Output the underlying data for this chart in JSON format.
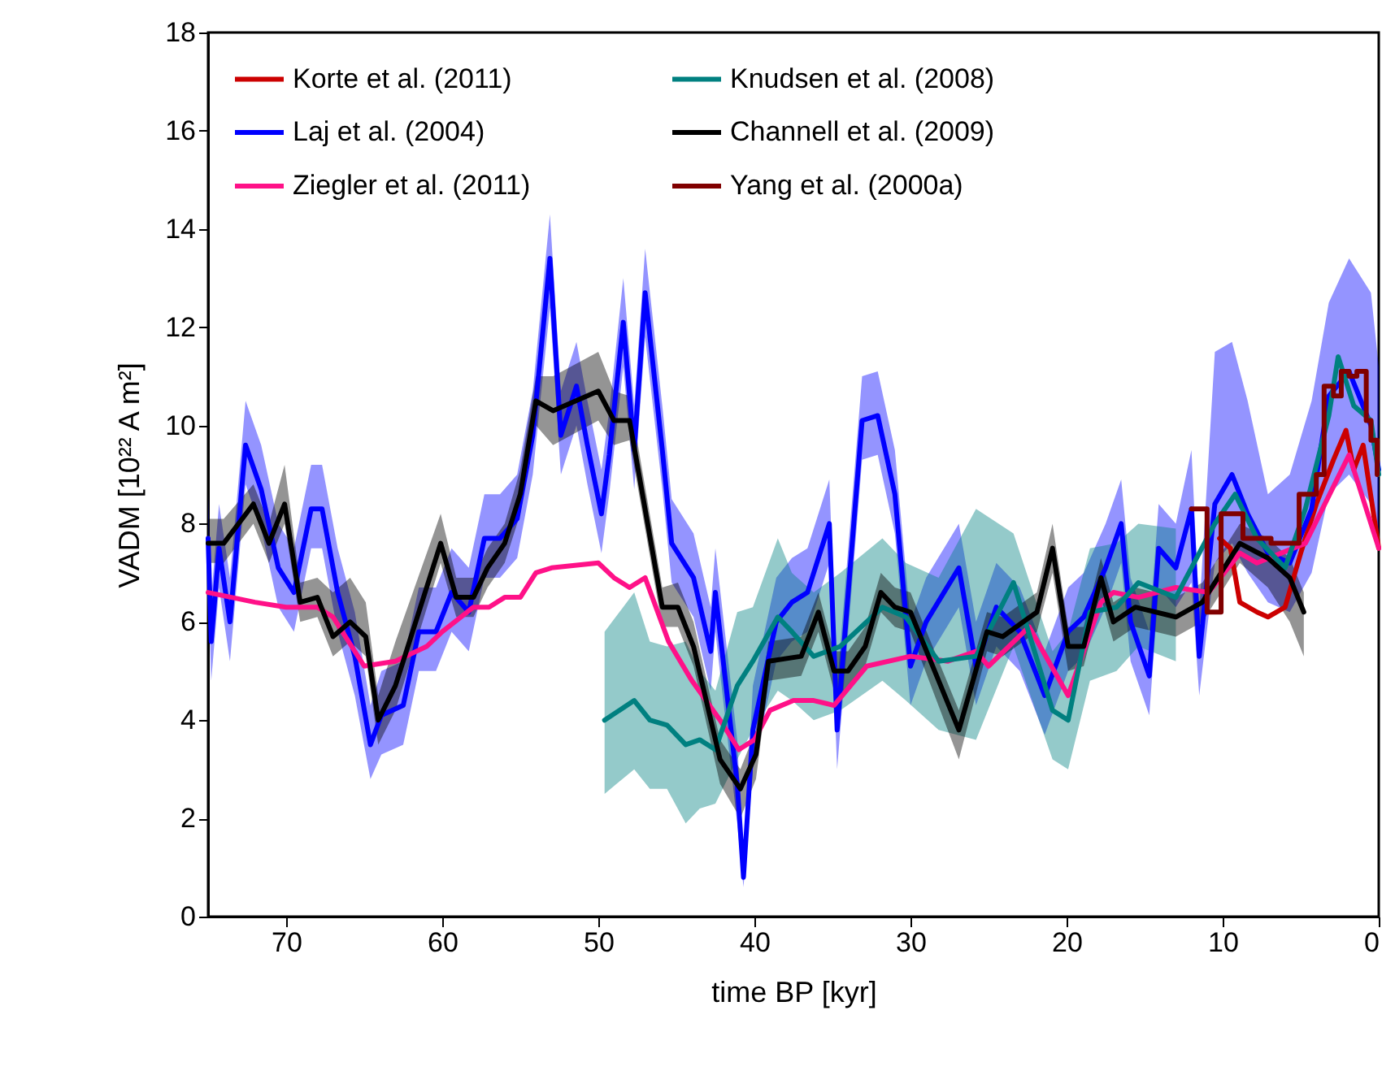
{
  "chart_data": {
    "type": "line",
    "xlabel": "time BP [kyr]",
    "ylabel": "VADM [10²² A m²]",
    "xlim": [
      75,
      0
    ],
    "xticks": [
      70,
      60,
      50,
      40,
      30,
      20,
      10,
      0
    ],
    "ylim": [
      0,
      18
    ],
    "yticks": [
      0,
      2,
      4,
      6,
      8,
      10,
      12,
      14,
      16,
      18
    ],
    "grid": false,
    "legend": "top",
    "line_style": "solid",
    "marker": "none",
    "series": [
      {
        "name": "Korte et al. (2011)",
        "color": "#cc0000",
        "x": [
          10.2,
          9.5,
          8.9,
          7.8,
          7.1,
          6,
          5,
          4,
          2.9,
          2.1,
          1.6,
          1,
          0
        ],
        "values": [
          7.7,
          7.5,
          6.4,
          6.2,
          6.1,
          6.3,
          7.4,
          8.4,
          9.3,
          9.9,
          9.1,
          9.6,
          7.5
        ]
      },
      {
        "name": "Laj et al. (2004)",
        "color": "#0000ff",
        "x": [
          75,
          74.8,
          74.3,
          73.6,
          72.6,
          71.6,
          70.5,
          69.5,
          68.4,
          67.7,
          66.7,
          65.6,
          64.6,
          63.9,
          62.5,
          61.5,
          60.4,
          59.4,
          58.3,
          57.3,
          56.3,
          55.2,
          54.2,
          53.1,
          52.4,
          51.4,
          50.7,
          49.8,
          49.3,
          48.4,
          47.7,
          47,
          45.9,
          45.3,
          43.9,
          42.8,
          42.5,
          41.1,
          40.7,
          40.1,
          38.6,
          37.6,
          36.6,
          35.2,
          34.7,
          33.1,
          32.1,
          31,
          30,
          29,
          26.9,
          25.8,
          24.5,
          23,
          21.4,
          19.9,
          18.9,
          17.5,
          16.5,
          15.9,
          14.7,
          14.1,
          13,
          12,
          11.5,
          10.5,
          9.4,
          8.4,
          7.1,
          5.7,
          4.3,
          3.2,
          1.9,
          0.5,
          0
        ],
        "values": [
          7.7,
          5.6,
          7.5,
          6.0,
          9.6,
          8.7,
          7.1,
          6.6,
          8.3,
          8.3,
          6.6,
          5.3,
          3.5,
          4.1,
          4.3,
          5.8,
          5.8,
          6.6,
          6.2,
          7.7,
          7.7,
          8.1,
          9.8,
          13.4,
          9.8,
          10.8,
          9.6,
          8.2,
          9.4,
          12.1,
          9.5,
          12.7,
          9.5,
          7.6,
          6.9,
          5.4,
          6.6,
          2.7,
          0.8,
          3.8,
          6.0,
          6.4,
          6.6,
          8.0,
          3.8,
          10.1,
          10.2,
          8.6,
          5.1,
          6.0,
          7.1,
          5.1,
          6.3,
          5.8,
          4.5,
          5.8,
          6.1,
          7.1,
          8.0,
          6.0,
          4.9,
          7.5,
          7.1,
          8.3,
          5.3,
          8.4,
          9.0,
          8.2,
          7.4,
          7.2,
          8.3,
          10.6,
          11.1,
          10.0,
          9.1
        ],
        "lower": [
          6.9,
          4.8,
          6.7,
          5.2,
          8.8,
          7.9,
          6.3,
          5.8,
          7.5,
          7.5,
          5.8,
          4.5,
          2.8,
          3.3,
          3.5,
          5.0,
          5.0,
          5.8,
          5.4,
          6.9,
          6.9,
          7.3,
          9.0,
          12.4,
          9.0,
          10.0,
          8.8,
          7.4,
          8.6,
          11.2,
          8.7,
          11.8,
          8.7,
          6.8,
          6.1,
          4.6,
          5.8,
          1.9,
          0.6,
          3.0,
          5.2,
          5.6,
          5.8,
          7.2,
          3.0,
          9.3,
          9.4,
          7.8,
          4.3,
          5.2,
          6.3,
          4.3,
          5.5,
          5.0,
          3.7,
          5.0,
          5.3,
          6.3,
          7.2,
          5.2,
          4.1,
          6.7,
          6.3,
          6.8,
          4.5,
          7.2,
          7.6,
          7.0,
          6.4,
          6.2,
          7.0,
          8.6,
          9.0,
          8.4,
          7.7
        ],
        "upper": [
          8.6,
          6.5,
          8.4,
          6.9,
          10.5,
          9.6,
          8.0,
          7.5,
          9.2,
          9.2,
          7.5,
          6.2,
          4.3,
          5.0,
          5.2,
          6.7,
          6.7,
          7.5,
          7.1,
          8.6,
          8.6,
          9.0,
          10.7,
          14.3,
          10.7,
          11.7,
          10.5,
          9.1,
          10.3,
          13.0,
          10.4,
          13.6,
          10.4,
          8.5,
          7.8,
          6.3,
          7.5,
          3.6,
          1.0,
          4.7,
          6.9,
          7.3,
          7.5,
          8.9,
          4.7,
          11.0,
          11.1,
          9.5,
          6.0,
          6.9,
          8.0,
          6.0,
          7.2,
          6.7,
          5.4,
          6.7,
          7.0,
          8.0,
          8.9,
          6.9,
          5.8,
          8.4,
          8.0,
          9.5,
          6.2,
          11.5,
          11.7,
          10.5,
          8.6,
          9.0,
          10.5,
          12.5,
          13.4,
          12.7,
          11.2
        ]
      },
      {
        "name": "Ziegler et al. (2011)",
        "color": "#ff1188",
        "x": [
          75,
          72,
          70,
          68,
          67,
          65,
          63,
          61,
          60,
          58,
          57,
          56,
          55,
          54,
          53,
          50,
          49,
          48,
          47,
          45.5,
          44,
          42.2,
          41,
          40,
          39,
          37.5,
          36.2,
          34.9,
          32.8,
          30,
          27.6,
          25.8,
          25,
          22.4,
          19.9,
          17.8,
          17,
          15.4,
          13,
          10.9,
          8.9,
          7.8,
          4.7,
          1.9,
          0
        ],
        "values": [
          6.6,
          6.4,
          6.3,
          6.3,
          6.1,
          5.1,
          5.2,
          5.5,
          5.8,
          6.3,
          6.3,
          6.5,
          6.5,
          7.0,
          7.1,
          7.2,
          6.9,
          6.7,
          6.9,
          5.6,
          4.8,
          4.0,
          3.4,
          3.6,
          4.2,
          4.4,
          4.4,
          4.3,
          5.1,
          5.3,
          5.2,
          5.4,
          5.1,
          5.9,
          4.5,
          6.4,
          6.6,
          6.5,
          6.7,
          6.6,
          7.4,
          7.2,
          7.6,
          9.4,
          7.5
        ]
      },
      {
        "name": "Knudsen et al. (2008)",
        "color": "#008080",
        "x": [
          49.6,
          47.7,
          46.7,
          45.6,
          44.4,
          43.5,
          42.5,
          41.1,
          40.1,
          38.5,
          37.6,
          36.2,
          34.5,
          31.8,
          30.3,
          28.2,
          25.8,
          23.4,
          20.9,
          19.9,
          18.5,
          16.8,
          15.4,
          13,
          10.5,
          9.2,
          7.8,
          6,
          4.7,
          3.2,
          2.6,
          1.6,
          0.5,
          0
        ],
        "values": [
          4.0,
          4.4,
          4.0,
          3.9,
          3.5,
          3.6,
          3.4,
          4.7,
          5.2,
          6.1,
          5.8,
          5.3,
          5.5,
          6.3,
          6.1,
          5.2,
          5.3,
          6.8,
          4.2,
          4.0,
          6.2,
          6.3,
          6.8,
          6.5,
          8.0,
          8.6,
          7.7,
          7.1,
          8.3,
          10.2,
          11.4,
          10.4,
          10.1,
          9.0
        ],
        "lower": [
          2.5,
          3.0,
          2.6,
          2.6,
          1.9,
          2.2,
          2.3,
          3.2,
          3.8,
          4.6,
          4.4,
          4.0,
          4.2,
          4.8,
          4.4,
          3.8,
          3.6,
          5.5,
          3.2,
          3.0,
          4.8,
          5.0,
          5.5,
          5.2,
          null,
          null,
          null,
          null,
          null,
          null,
          null,
          null,
          null,
          null
        ],
        "upper": [
          5.8,
          6.6,
          5.6,
          5.5,
          5.6,
          5.0,
          4.6,
          6.2,
          6.3,
          7.7,
          7.0,
          6.6,
          7.0,
          7.7,
          7.2,
          6.9,
          8.3,
          7.8,
          5.4,
          5.8,
          7.5,
          7.6,
          8.0,
          7.9,
          null,
          null,
          null,
          null,
          null,
          null,
          null,
          null,
          null,
          null
        ]
      },
      {
        "name": "Channell et al. (2009)",
        "color": "#000000",
        "x": [
          75,
          74,
          72.1,
          71.1,
          70.1,
          69.1,
          68,
          67,
          65.9,
          64.9,
          64.1,
          63,
          60.1,
          59.1,
          58,
          57.1,
          56,
          55,
          54,
          52.9,
          50,
          49,
          48,
          45.9,
          44.9,
          43.9,
          42.2,
          40.9,
          39.9,
          39.1,
          37,
          35.9,
          34.9,
          34,
          32.9,
          31.9,
          31,
          30,
          26.9,
          25.1,
          24.1,
          21.9,
          20.9,
          19.9,
          18.9,
          17.8,
          17,
          15.6,
          13,
          11.3,
          8.9,
          7.1,
          5.7,
          4.8
        ],
        "values": [
          7.6,
          7.6,
          8.4,
          7.6,
          8.4,
          6.4,
          6.5,
          5.7,
          6.0,
          5.7,
          4.0,
          4.7,
          7.6,
          6.5,
          6.5,
          7.1,
          7.6,
          8.6,
          10.5,
          10.3,
          10.7,
          10.1,
          10.1,
          6.3,
          6.3,
          5.5,
          3.2,
          2.6,
          3.3,
          5.2,
          5.3,
          6.2,
          5.0,
          5.0,
          5.5,
          6.6,
          6.3,
          6.2,
          3.8,
          5.8,
          5.7,
          6.2,
          7.5,
          5.5,
          5.5,
          6.9,
          6.0,
          6.3,
          6.1,
          6.4,
          7.6,
          7.3,
          6.9,
          6.2
        ],
        "lower": [
          7.2,
          7.2,
          8.0,
          7.2,
          8.0,
          6.0,
          6.1,
          5.3,
          5.6,
          5.3,
          3.5,
          4.2,
          7.2,
          6.1,
          6.1,
          6.7,
          7.2,
          8.2,
          10.0,
          9.6,
          10.1,
          9.6,
          9.7,
          5.9,
          5.9,
          5.1,
          2.7,
          2.0,
          2.8,
          4.8,
          4.9,
          5.8,
          4.6,
          4.6,
          5.1,
          6.2,
          5.9,
          5.8,
          3.2,
          5.4,
          5.3,
          5.8,
          7.0,
          5.0,
          5.1,
          6.5,
          5.6,
          5.9,
          5.7,
          6.0,
          7.2,
          6.7,
          6.0,
          5.3
        ],
        "upper": [
          8.1,
          8.1,
          8.8,
          8.0,
          9.2,
          6.8,
          6.9,
          6.6,
          6.9,
          6.4,
          4.5,
          5.6,
          8.2,
          6.9,
          6.9,
          7.5,
          8.0,
          9.1,
          11.0,
          11.0,
          11.5,
          10.7,
          10.6,
          6.7,
          6.8,
          6.0,
          3.6,
          3.0,
          3.8,
          5.6,
          5.7,
          6.6,
          5.4,
          5.4,
          5.9,
          7.0,
          6.7,
          6.6,
          4.2,
          6.2,
          6.1,
          6.6,
          8.0,
          5.9,
          5.9,
          7.3,
          6.4,
          6.7,
          6.5,
          6.8,
          8.0,
          7.7,
          7.3,
          6.6
        ]
      },
      {
        "name": "Yang et al. (2000a)",
        "color": "#800000",
        "type": "step",
        "x": [
          12.0,
          11.0,
          10.1,
          8.7,
          6.9,
          5.1,
          4.0,
          3.5,
          2.9,
          2.4,
          1.9,
          1.4,
          0.8,
          0.5,
          0.1
        ],
        "values": [
          8.3,
          6.2,
          8.2,
          7.7,
          7.6,
          8.6,
          9.0,
          10.8,
          10.6,
          11.1,
          11.0,
          11.1,
          10.1,
          9.7,
          9.0
        ]
      }
    ]
  }
}
